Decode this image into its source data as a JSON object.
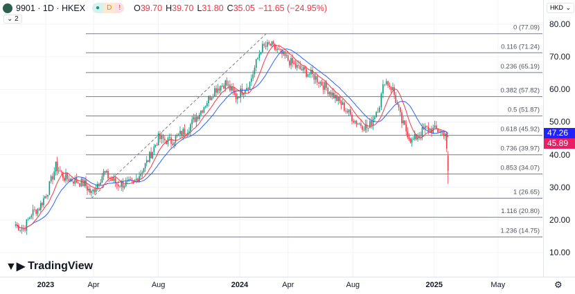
{
  "header": {
    "symbol": "9901 · 1D · HKEX",
    "badges": [
      "●",
      "D",
      "!"
    ],
    "open_label": "O",
    "open": "39.70",
    "high_label": "H",
    "high": "39.70",
    "low_label": "L",
    "low": "31.80",
    "close_label": "C",
    "close": "35.05",
    "change": "−11.65 (−24.95%)",
    "legend_toggle": "⌄ 2"
  },
  "currency": "HKD",
  "price_tags": [
    {
      "value": "47.26",
      "color": "#2222ff"
    },
    {
      "value": "45.89",
      "color": "#e91e63"
    }
  ],
  "brand": "TradingView",
  "chart_data": {
    "type": "candlestick",
    "yticks": [
      80,
      70,
      60,
      50,
      40,
      30,
      20,
      10
    ],
    "ylim": [
      6,
      82
    ],
    "xticks": [
      {
        "label": "2023",
        "date": "2023-01-01"
      },
      {
        "label": "Apr",
        "date": "2023-04-01"
      },
      {
        "label": "Aug",
        "date": "2023-08-01"
      },
      {
        "label": "2024",
        "date": "2024-01-01"
      },
      {
        "label": "Apr",
        "date": "2024-04-01"
      },
      {
        "label": "Aug",
        "date": "2024-08-01"
      },
      {
        "label": "2025",
        "date": "2025-01-01"
      },
      {
        "label": "May",
        "date": "2025-05-01"
      }
    ],
    "close": [
      [
        "2022-11-05",
        18.5
      ],
      [
        "2022-11-20",
        17
      ],
      [
        "2022-12-05",
        22
      ],
      [
        "2022-12-20",
        23.8
      ],
      [
        "2023-01-05",
        29
      ],
      [
        "2023-01-20",
        36.5
      ],
      [
        "2023-02-05",
        33
      ],
      [
        "2023-02-25",
        32
      ],
      [
        "2023-03-15",
        31
      ],
      [
        "2023-03-28",
        28
      ],
      [
        "2023-04-20",
        34.4
      ],
      [
        "2023-05-15",
        31
      ],
      [
        "2023-06-15",
        31
      ],
      [
        "2023-07-10",
        37.6
      ],
      [
        "2023-08-01",
        45
      ],
      [
        "2023-08-25",
        44
      ],
      [
        "2023-09-25",
        48
      ],
      [
        "2023-10-20",
        53.5
      ],
      [
        "2023-11-15",
        60
      ],
      [
        "2023-12-05",
        62
      ],
      [
        "2023-12-25",
        57.7
      ],
      [
        "2024-01-20",
        62
      ],
      [
        "2024-02-10",
        72.6
      ],
      [
        "2024-02-28",
        73.6
      ],
      [
        "2024-03-15",
        71.5
      ],
      [
        "2024-04-15",
        67
      ],
      [
        "2024-05-20",
        64
      ],
      [
        "2024-06-15",
        60
      ],
      [
        "2024-07-10",
        55.6
      ],
      [
        "2024-08-05",
        50.3
      ],
      [
        "2024-08-30",
        48
      ],
      [
        "2024-09-20",
        55.6
      ],
      [
        "2024-09-30",
        63
      ],
      [
        "2024-10-15",
        60
      ],
      [
        "2024-11-01",
        50
      ],
      [
        "2024-11-20",
        44
      ],
      [
        "2024-12-15",
        48
      ],
      [
        "2025-01-05",
        47.5
      ],
      [
        "2025-01-22",
        46.7
      ],
      [
        "2025-01-27",
        35.05
      ]
    ],
    "ma_colors": [
      "#2962ff",
      "#f23645"
    ],
    "fib": [
      {
        "label": "0 (77.09)",
        "value": 77.09
      },
      {
        "label": "0.116 (71.24)",
        "value": 71.24
      },
      {
        "label": "0.236 (65.19)",
        "value": 65.19
      },
      {
        "label": "0.382 (57.82)",
        "value": 57.82
      },
      {
        "label": "0.5 (51.87)",
        "value": 51.87
      },
      {
        "label": "0.618 (45.92)",
        "value": 45.92
      },
      {
        "label": "0.736 (39.97)",
        "value": 39.97
      },
      {
        "label": "0.853 (34.07)",
        "value": 34.07
      },
      {
        "label": "1 (26.65)",
        "value": 26.65
      },
      {
        "label": "1.116 (20.80)",
        "value": 20.8
      },
      {
        "label": "1.236 (14.75)",
        "value": 14.75
      }
    ],
    "trendline": {
      "from": [
        "2023-03-28",
        26.65
      ],
      "to": [
        "2024-02-20",
        77.09
      ]
    },
    "up_color": "#089981",
    "down_color": "#f23645"
  }
}
